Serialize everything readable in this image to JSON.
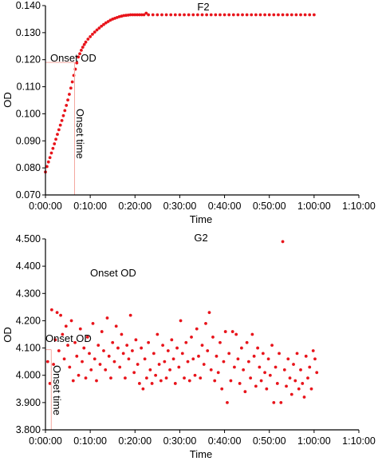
{
  "chart_data": [
    {
      "type": "scatter",
      "title": "F2",
      "xlabel": "Time",
      "ylabel": "OD",
      "x_tick_labels": [
        "0:00:00",
        "0:10:00",
        "0:20:00",
        "0:30:00",
        "0:40:00",
        "0:50:00",
        "1:00:00",
        "1:10:00"
      ],
      "y_tick_labels": [
        "0.070",
        "0.080",
        "0.090",
        "0.100",
        "0.110",
        "0.120",
        "0.130",
        "0.140"
      ],
      "xlim_minutes": [
        0,
        70
      ],
      "ylim": [
        0.07,
        0.14
      ],
      "grid": false,
      "point_color": "#e8141b",
      "annotations": {
        "onset_od_label": "Onset OD",
        "onset_time_label": "Onset time",
        "onset_od_value": 0.119,
        "onset_time_minutes": 6.5,
        "line_color": "#f4a8a0"
      },
      "series": [
        {
          "points": [
            [
              0.0,
              0.0785
            ],
            [
              0.33,
              0.0805
            ],
            [
              0.67,
              0.0822
            ],
            [
              1.0,
              0.0838
            ],
            [
              1.33,
              0.0855
            ],
            [
              1.67,
              0.0872
            ],
            [
              2.0,
              0.0889
            ],
            [
              2.33,
              0.0906
            ],
            [
              2.67,
              0.0924
            ],
            [
              3.0,
              0.0941
            ],
            [
              3.33,
              0.0958
            ],
            [
              3.67,
              0.0975
            ],
            [
              4.0,
              0.0993
            ],
            [
              4.33,
              0.1012
            ],
            [
              4.67,
              0.1031
            ],
            [
              5.0,
              0.1051
            ],
            [
              5.33,
              0.1072
            ],
            [
              5.67,
              0.1095
            ],
            [
              6.0,
              0.1118
            ],
            [
              6.33,
              0.1142
            ],
            [
              6.67,
              0.1165
            ],
            [
              7.0,
              0.1188
            ],
            [
              7.33,
              0.121
            ],
            [
              7.67,
              0.1222
            ],
            [
              8.0,
              0.1235
            ],
            [
              8.33,
              0.1246
            ],
            [
              8.67,
              0.1256
            ],
            [
              9.0,
              0.1265
            ],
            [
              9.5,
              0.1276
            ],
            [
              10.0,
              0.1285
            ],
            [
              10.5,
              0.1294
            ],
            [
              11.0,
              0.1302
            ],
            [
              11.5,
              0.131
            ],
            [
              12.0,
              0.1317
            ],
            [
              12.5,
              0.1324
            ],
            [
              13.0,
              0.133
            ],
            [
              13.5,
              0.1336
            ],
            [
              14.0,
              0.1341
            ],
            [
              14.5,
              0.1346
            ],
            [
              15.0,
              0.135
            ],
            [
              15.5,
              0.1353
            ],
            [
              16.0,
              0.1356
            ],
            [
              16.5,
              0.1359
            ],
            [
              17.0,
              0.1361
            ],
            [
              17.5,
              0.1363
            ],
            [
              18.0,
              0.1364
            ],
            [
              18.5,
              0.1365
            ],
            [
              19.0,
              0.1366
            ],
            [
              19.5,
              0.1366
            ],
            [
              20.0,
              0.1366
            ],
            [
              20.5,
              0.1366
            ],
            [
              21.0,
              0.1366
            ],
            [
              21.5,
              0.1366
            ],
            [
              22.0,
              0.1366
            ],
            [
              22.5,
              0.1372
            ],
            [
              23.0,
              0.1366
            ],
            [
              24.0,
              0.1366
            ],
            [
              25.0,
              0.1366
            ],
            [
              26.0,
              0.1366
            ],
            [
              27.0,
              0.1366
            ],
            [
              28.0,
              0.1366
            ],
            [
              29.0,
              0.1366
            ],
            [
              30.0,
              0.1366
            ],
            [
              31.0,
              0.1366
            ],
            [
              32.0,
              0.1366
            ],
            [
              33.0,
              0.1366
            ],
            [
              34.0,
              0.1366
            ],
            [
              35.0,
              0.1366
            ],
            [
              36.0,
              0.1366
            ],
            [
              37.0,
              0.1366
            ],
            [
              38.0,
              0.1366
            ],
            [
              39.0,
              0.1366
            ],
            [
              40.0,
              0.1366
            ],
            [
              41.0,
              0.1366
            ],
            [
              42.0,
              0.1366
            ],
            [
              43.0,
              0.1366
            ],
            [
              44.0,
              0.1366
            ],
            [
              45.0,
              0.1366
            ],
            [
              46.0,
              0.1366
            ],
            [
              47.0,
              0.1366
            ],
            [
              48.0,
              0.1366
            ],
            [
              49.0,
              0.1366
            ],
            [
              50.0,
              0.1366
            ],
            [
              51.0,
              0.1366
            ],
            [
              52.0,
              0.1366
            ],
            [
              53.0,
              0.1366
            ],
            [
              54.0,
              0.1366
            ],
            [
              55.0,
              0.1366
            ],
            [
              56.0,
              0.1366
            ],
            [
              57.0,
              0.1366
            ],
            [
              58.0,
              0.1366
            ],
            [
              59.0,
              0.1366
            ],
            [
              60.0,
              0.1366
            ]
          ]
        }
      ]
    },
    {
      "type": "scatter",
      "title": "G2",
      "xlabel": "Time",
      "ylabel": "OD",
      "x_tick_labels": [
        "0:00:00",
        "0:10:00",
        "0:20:00",
        "0:30:00",
        "0:40:00",
        "0:50:00",
        "1:00:00",
        "1:10:00"
      ],
      "y_tick_labels": [
        "3.800",
        "3.900",
        "4.000",
        "4.100",
        "4.200",
        "4.300",
        "4.400",
        "4.500"
      ],
      "xlim_minutes": [
        0,
        70
      ],
      "ylim": [
        3.8,
        4.5
      ],
      "grid": false,
      "point_color": "#e8141b",
      "annotations": {
        "onset_od_label_top": "Onset OD",
        "onset_od_label": "Onset OD",
        "onset_time_label": "Onset time",
        "onset_od_value": 4.094,
        "onset_time_minutes": 1.3,
        "line_color": "#f4a8a0"
      },
      "series": [
        {
          "points": [
            [
              0.5,
              4.05
            ],
            [
              1.0,
              3.97
            ],
            [
              1.4,
              4.24
            ],
            [
              1.8,
              4.04
            ],
            [
              2.2,
              4.13
            ],
            [
              2.6,
              4.23
            ],
            [
              3.0,
              4.09
            ],
            [
              3.4,
              4.22
            ],
            [
              3.8,
              4.15
            ],
            [
              4.2,
              4.06
            ],
            [
              4.6,
              4.18
            ],
            [
              5.0,
              4.11
            ],
            [
              5.4,
              4.03
            ],
            [
              5.8,
              4.2
            ],
            [
              6.2,
              3.98
            ],
            [
              6.6,
              4.12
            ],
            [
              7.0,
              4.07
            ],
            [
              7.4,
              4.0
            ],
            [
              7.8,
              4.17
            ],
            [
              8.2,
              4.05
            ],
            [
              8.6,
              4.1
            ],
            [
              9.0,
              3.99
            ],
            [
              9.4,
              4.14
            ],
            [
              9.8,
              4.08
            ],
            [
              10.2,
              4.02
            ],
            [
              10.6,
              4.19
            ],
            [
              11.0,
              4.06
            ],
            [
              11.4,
              3.98
            ],
            [
              11.8,
              4.11
            ],
            [
              12.2,
              4.04
            ],
            [
              12.6,
              4.16
            ],
            [
              13.0,
              4.09
            ],
            [
              13.4,
              4.02
            ],
            [
              13.8,
              4.21
            ],
            [
              14.2,
              4.07
            ],
            [
              14.6,
              3.99
            ],
            [
              15.0,
              4.12
            ],
            [
              15.4,
              4.05
            ],
            [
              15.8,
              4.18
            ],
            [
              16.2,
              4.1
            ],
            [
              16.6,
              4.03
            ],
            [
              17.0,
              4.15
            ],
            [
              17.4,
              4.08
            ],
            [
              17.8,
              3.99
            ],
            [
              18.2,
              4.11
            ],
            [
              18.6,
              4.06
            ],
            [
              19.0,
              4.22
            ],
            [
              19.4,
              4.09
            ],
            [
              19.8,
              4.01
            ],
            [
              20.2,
              4.13
            ],
            [
              20.6,
              4.04
            ],
            [
              21.0,
              3.97
            ],
            [
              21.4,
              4.1
            ],
            [
              21.8,
              3.95
            ],
            [
              22.2,
              4.06
            ],
            [
              22.6,
              3.99
            ],
            [
              23.0,
              4.12
            ],
            [
              23.4,
              4.02
            ],
            [
              23.8,
              3.97
            ],
            [
              24.2,
              4.08
            ],
            [
              24.6,
              4.0
            ],
            [
              25.0,
              4.15
            ],
            [
              25.4,
              4.04
            ],
            [
              25.8,
              3.98
            ],
            [
              26.2,
              4.11
            ],
            [
              26.6,
              4.05
            ],
            [
              27.0,
              3.99
            ],
            [
              27.4,
              4.09
            ],
            [
              27.8,
              4.02
            ],
            [
              28.2,
              4.13
            ],
            [
              28.6,
              4.06
            ],
            [
              29.0,
              3.97
            ],
            [
              29.4,
              4.1
            ],
            [
              29.8,
              4.03
            ],
            [
              30.2,
              4.2
            ],
            [
              30.6,
              4.08
            ],
            [
              31.0,
              3.99
            ],
            [
              31.4,
              4.12
            ],
            [
              31.8,
              4.05
            ],
            [
              32.2,
              3.98
            ],
            [
              32.6,
              4.14
            ],
            [
              33.0,
              4.06
            ],
            [
              33.4,
              4.0
            ],
            [
              33.8,
              4.17
            ],
            [
              34.2,
              4.07
            ],
            [
              34.6,
              3.99
            ],
            [
              35.0,
              4.11
            ],
            [
              35.4,
              4.04
            ],
            [
              35.8,
              4.19
            ],
            [
              36.2,
              4.09
            ],
            [
              36.6,
              4.23
            ],
            [
              37.0,
              4.02
            ],
            [
              37.4,
              4.14
            ],
            [
              37.8,
              3.98
            ],
            [
              38.2,
              4.07
            ],
            [
              38.6,
              4.01
            ],
            [
              39.0,
              4.12
            ],
            [
              39.4,
              3.95
            ],
            [
              39.8,
              4.05
            ],
            [
              40.2,
              4.16
            ],
            [
              40.6,
              3.9
            ],
            [
              41.0,
              4.08
            ],
            [
              41.4,
              3.98
            ],
            [
              41.8,
              4.16
            ],
            [
              42.2,
              4.03
            ],
            [
              42.6,
              4.15
            ],
            [
              43.0,
              4.06
            ],
            [
              43.4,
              3.97
            ],
            [
              43.8,
              4.1
            ],
            [
              44.2,
              4.02
            ],
            [
              44.6,
              3.94
            ],
            [
              45.0,
              4.12
            ],
            [
              45.4,
              4.05
            ],
            [
              45.8,
              3.99
            ],
            [
              46.2,
              4.15
            ],
            [
              46.6,
              4.07
            ],
            [
              47.0,
              3.96
            ],
            [
              47.4,
              4.1
            ],
            [
              47.8,
              4.03
            ],
            [
              48.2,
              3.98
            ],
            [
              48.6,
              4.08
            ],
            [
              49.0,
              4.01
            ],
            [
              49.4,
              3.95
            ],
            [
              49.8,
              4.06
            ],
            [
              50.2,
              4.0
            ],
            [
              50.6,
              4.11
            ],
            [
              51.0,
              3.9
            ],
            [
              51.4,
              4.03
            ],
            [
              51.8,
              3.97
            ],
            [
              52.2,
              4.08
            ],
            [
              52.6,
              3.9
            ],
            [
              53.0,
              4.49
            ],
            [
              53.4,
              4.02
            ],
            [
              53.8,
              3.96
            ],
            [
              54.2,
              4.06
            ],
            [
              54.6,
              3.99
            ],
            [
              55.0,
              3.93
            ],
            [
              55.4,
              4.04
            ],
            [
              55.8,
              3.98
            ],
            [
              56.2,
              4.08
            ],
            [
              56.6,
              3.95
            ],
            [
              57.0,
              4.02
            ],
            [
              57.4,
              3.97
            ],
            [
              57.8,
              3.92
            ],
            [
              58.2,
              4.07
            ],
            [
              58.6,
              3.99
            ],
            [
              59.0,
              4.03
            ],
            [
              59.4,
              3.95
            ],
            [
              59.8,
              4.09
            ],
            [
              60.2,
              4.06
            ],
            [
              60.6,
              4.01
            ]
          ]
        }
      ]
    }
  ]
}
